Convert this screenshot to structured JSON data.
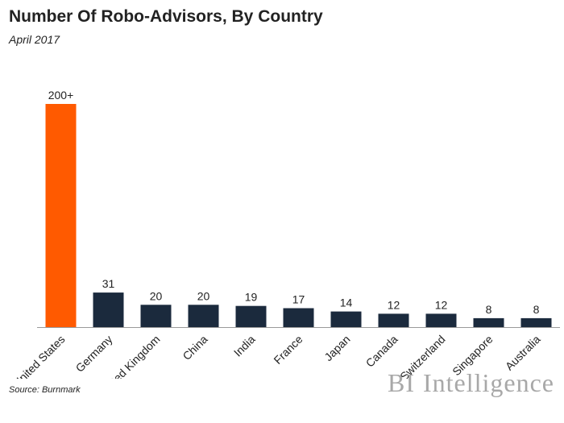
{
  "header": {
    "title": "Number Of Robo-Advisors, By Country",
    "subtitle": "April 2017"
  },
  "footer": {
    "source": "Source: Burnmark",
    "brand_bi": "BI",
    "brand_intelligence": "Intelligence"
  },
  "colors": {
    "highlight": "#FF5A00",
    "bar": "#1B2A3D",
    "axis": "#9a9a9a",
    "text": "#222222",
    "brand": "#a8a8a8"
  },
  "chart_data": {
    "type": "bar",
    "title": "Number Of Robo-Advisors, By Country",
    "subtitle": "April 2017",
    "xlabel": "",
    "ylabel": "",
    "grid": false,
    "categories": [
      "United States",
      "Germany",
      "United Kingdom",
      "China",
      "India",
      "France",
      "Japan",
      "Canada",
      "Switzerland",
      "Singapore",
      "Australia"
    ],
    "values": [
      200,
      31,
      20,
      20,
      19,
      17,
      14,
      12,
      12,
      8,
      8
    ],
    "labels": [
      "200+",
      "31",
      "20",
      "20",
      "19",
      "17",
      "14",
      "12",
      "12",
      "8",
      "8"
    ],
    "highlight_index": 0,
    "ylim": [
      0,
      200
    ]
  }
}
